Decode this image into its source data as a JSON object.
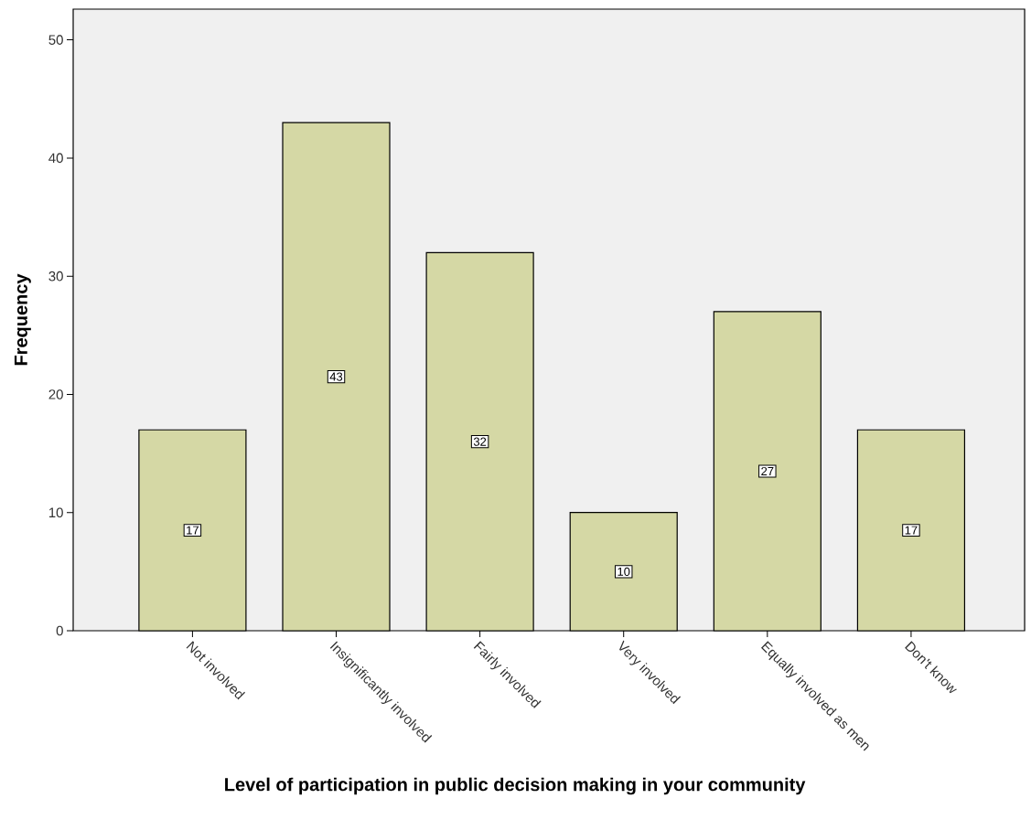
{
  "chart_data": {
    "type": "bar",
    "xlabel": "Level of participation in public decision making in your community",
    "ylabel": "Frequency",
    "categories": [
      "Not involved",
      "Insignificantly involved",
      "Fairly involved",
      "Very involved",
      "Equally involved as men",
      "Don't know"
    ],
    "values": [
      17,
      43,
      32,
      10,
      27,
      17
    ],
    "color": "#d5d8a5",
    "ylim": [
      0,
      52.6
    ],
    "yticks": [
      0,
      10,
      20,
      30,
      40,
      50
    ],
    "data_labels": true
  }
}
